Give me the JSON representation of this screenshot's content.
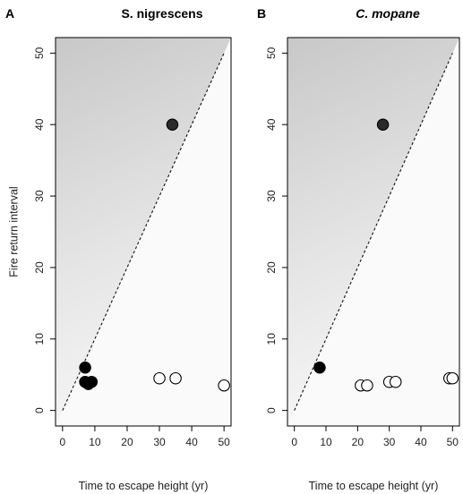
{
  "chart_data": [
    {
      "type": "scatter",
      "panel_label": "A",
      "title": "S. nigrescens",
      "title_italic": false,
      "xlabel": "Time to escape height (yr)",
      "ylabel": "Fire return interval",
      "xlim": [
        0,
        50
      ],
      "ylim": [
        0,
        50
      ],
      "xticks": [
        0,
        10,
        20,
        30,
        40,
        50
      ],
      "yticks": [
        0,
        10,
        20,
        30,
        40,
        50
      ],
      "reference_line": "dashed y = x",
      "shading": "grey gradient above the y = x line",
      "series": [
        {
          "style": "dark-filled",
          "points": [
            {
              "x": 34,
              "y": 40
            }
          ]
        },
        {
          "style": "black-filled",
          "points": [
            {
              "x": 7,
              "y": 6
            },
            {
              "x": 7,
              "y": 4
            },
            {
              "x": 8,
              "y": 3.7
            },
            {
              "x": 9,
              "y": 4
            }
          ]
        },
        {
          "style": "open",
          "points": [
            {
              "x": 30,
              "y": 4.5
            },
            {
              "x": 35,
              "y": 4.5
            },
            {
              "x": 50,
              "y": 3.5
            }
          ]
        }
      ]
    },
    {
      "type": "scatter",
      "panel_label": "B",
      "title": "C. mopane",
      "title_italic": true,
      "xlabel": "Time to escape height (yr)",
      "ylabel": "",
      "xlim": [
        0,
        50
      ],
      "ylim": [
        0,
        50
      ],
      "xticks": [
        0,
        10,
        20,
        30,
        40,
        50
      ],
      "yticks": [
        0,
        10,
        20,
        30,
        40,
        50
      ],
      "reference_line": "dashed y = x",
      "shading": "grey gradient above the y = x line",
      "series": [
        {
          "style": "dark-filled",
          "points": [
            {
              "x": 28,
              "y": 40
            }
          ]
        },
        {
          "style": "black-filled",
          "points": [
            {
              "x": 8,
              "y": 6
            }
          ]
        },
        {
          "style": "open",
          "points": [
            {
              "x": 21,
              "y": 3.5
            },
            {
              "x": 23,
              "y": 3.5
            },
            {
              "x": 30,
              "y": 4
            },
            {
              "x": 32,
              "y": 4
            },
            {
              "x": 49,
              "y": 4.5
            },
            {
              "x": 50,
              "y": 4.5
            }
          ]
        }
      ]
    }
  ]
}
